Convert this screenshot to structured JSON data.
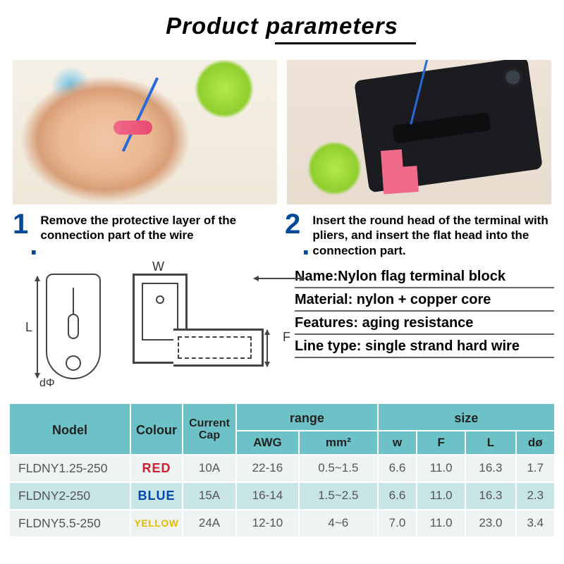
{
  "title": "Product parameters",
  "steps": [
    {
      "num": "1",
      "text": "Remove the protective layer of the connection part of the wire"
    },
    {
      "num": "2",
      "text": "Insert the round head of the terminal with pliers, and insert the flat head into the connection part."
    }
  ],
  "diagram_labels": {
    "L": "L",
    "dphi": "dΦ",
    "W": "W",
    "F": "F"
  },
  "specs": [
    "Name:Nylon flag terminal block",
    "Material: nylon + copper core",
    "Features: aging resistance",
    "Line type: single strand hard wire"
  ],
  "table": {
    "header_bg": "#6cc2c6",
    "row_bg": "#eef3f4",
    "row_alt_bg": "#c7e4e6",
    "top_headers": {
      "model": "Nodel",
      "colour": "Colour",
      "current": "Current Cap",
      "range": "range",
      "size": "size"
    },
    "sub_headers": {
      "awg": "AWG",
      "mm2": "mm²",
      "w": "w",
      "F": "F",
      "L": "L",
      "d": "dø"
    },
    "rows": [
      {
        "model": "FLDNY1.25-250",
        "colour": "RED",
        "colour_class": "colour-red",
        "cap": "10A",
        "awg": "22-16",
        "mm2": "0.5~1.5",
        "w": "6.6",
        "F": "11.0",
        "L": "16.3",
        "d": "1.7",
        "alt": false
      },
      {
        "model": "FLDNY2-250",
        "colour": "BLUE",
        "colour_class": "colour-blue",
        "cap": "15A",
        "awg": "16-14",
        "mm2": "1.5~2.5",
        "w": "6.6",
        "F": "11.0",
        "L": "16.3",
        "d": "2.3",
        "alt": true
      },
      {
        "model": "FLDNY5.5-250",
        "colour": "YELLOW",
        "colour_class": "colour-yellow",
        "cap": "24A",
        "awg": "12-10",
        "mm2": "4~6",
        "w": "7.0",
        "F": "11.0",
        "L": "23.0",
        "d": "3.4",
        "alt": false
      }
    ]
  }
}
